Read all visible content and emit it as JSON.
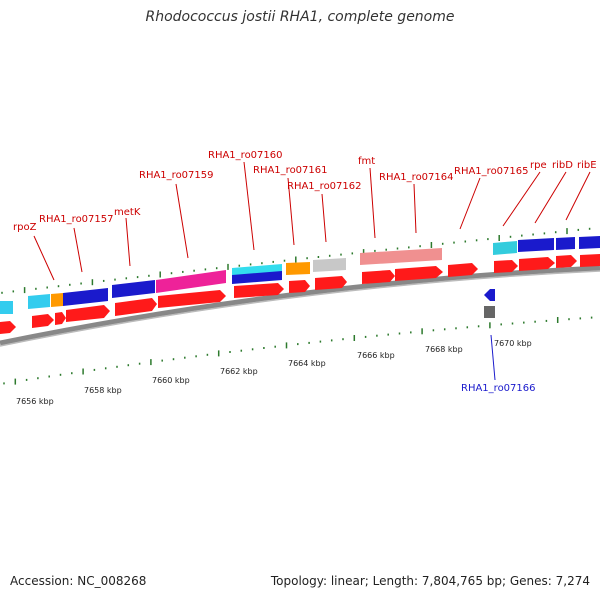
{
  "title": "Rhodococcus jostii RHA1, complete genome",
  "footer": {
    "accession": "Accession: NC_008268",
    "stats": "Topology: linear; Length: 7,804,765 bp; Genes: 7,274"
  },
  "colors": {
    "forward": "#ff1a1a",
    "reverse": "#2222dd",
    "backbone": "#888888",
    "tick": "#2d7a2d",
    "label_fwd": "#cc0000",
    "label_rev": "#1a1acc"
  },
  "scale_labels": [
    "7656 kbp",
    "7658 kbp",
    "7660 kbp",
    "7662 kbp",
    "7664 kbp",
    "7666 kbp",
    "7668 kbp",
    "7670 kbp"
  ],
  "gene_labels": [
    {
      "text": "rpoZ"
    },
    {
      "text": "RHA1_ro07157"
    },
    {
      "text": "metK"
    },
    {
      "text": "RHA1_ro07159"
    },
    {
      "text": "RHA1_ro07160"
    },
    {
      "text": "RHA1_ro07161"
    },
    {
      "text": "RHA1_ro07162"
    },
    {
      "text": "fmt"
    },
    {
      "text": "RHA1_ro07164"
    },
    {
      "text": "RHA1_ro07165"
    },
    {
      "text": "rpe"
    },
    {
      "text": "ribD"
    },
    {
      "text": "ribE"
    },
    {
      "text": "RHA1_ro07166"
    }
  ]
}
